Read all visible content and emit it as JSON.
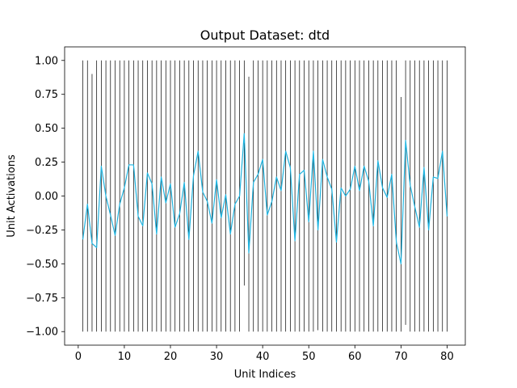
{
  "chart_data": {
    "type": "line",
    "title": "Output Dataset: dtd",
    "xlabel": "Unit Indices",
    "ylabel": "Unit Activations",
    "xlim": [
      -2.95,
      83.95
    ],
    "ylim": [
      -1.1,
      1.1
    ],
    "xticks": [
      0,
      10,
      20,
      30,
      40,
      50,
      60,
      70,
      80
    ],
    "xtick_labels": [
      "0",
      "10",
      "20",
      "30",
      "40",
      "50",
      "60",
      "70",
      "80"
    ],
    "yticks": [
      -1.0,
      -0.75,
      -0.5,
      -0.25,
      0.0,
      0.25,
      0.5,
      0.75,
      1.0
    ],
    "ytick_labels": [
      "−1.00",
      "−0.75",
      "−0.50",
      "−0.25",
      "0.00",
      "0.25",
      "0.50",
      "0.75",
      "1.00"
    ],
    "grid": false,
    "series": [
      {
        "kind": "vlines",
        "color": "#000000",
        "x": [
          1,
          2,
          3,
          4,
          5,
          6,
          7,
          8,
          9,
          10,
          11,
          12,
          13,
          14,
          15,
          16,
          17,
          18,
          19,
          20,
          21,
          22,
          23,
          24,
          25,
          26,
          27,
          28,
          29,
          30,
          31,
          32,
          33,
          34,
          35,
          36,
          37,
          38,
          39,
          40,
          41,
          42,
          43,
          44,
          45,
          46,
          47,
          48,
          49,
          50,
          51,
          52,
          53,
          54,
          55,
          56,
          57,
          58,
          59,
          60,
          61,
          62,
          63,
          64,
          65,
          66,
          67,
          68,
          69,
          70,
          71,
          72,
          73,
          74,
          75,
          76,
          77,
          78,
          79,
          80
        ],
        "ymin": [
          -1,
          -1,
          -1,
          -1,
          -1,
          -1,
          -1,
          -1,
          -1,
          -1,
          -1,
          -1,
          -1,
          -1,
          -1,
          -1,
          -1,
          -1,
          -1,
          -1,
          -1,
          -1,
          -1,
          -1,
          -1,
          -1,
          -1,
          -1,
          -1,
          -1,
          -1,
          -1,
          -1,
          -1,
          -1,
          -0.66,
          -1,
          -1,
          -1,
          -1,
          -1,
          -1,
          -1,
          -1,
          -1,
          -1,
          -1,
          -1,
          -1,
          -1,
          -1,
          -0.99,
          -1,
          -1,
          -1,
          -1,
          -1,
          -1,
          -1,
          -1,
          -1,
          -1,
          -1,
          -1,
          -1,
          -1,
          -1,
          -1,
          -1,
          -1,
          -0.95,
          -1,
          -1,
          -1,
          -1,
          -1,
          -1,
          -1,
          -1,
          -1
        ],
        "ymax": [
          1,
          1,
          0.9,
          1,
          1,
          1,
          1,
          1,
          1,
          1,
          1,
          1,
          1,
          1,
          1,
          1,
          1,
          1,
          1,
          1,
          1,
          1,
          1,
          1,
          1,
          1,
          1,
          1,
          1,
          1,
          1,
          1,
          1,
          1,
          1,
          1,
          0.88,
          1,
          1,
          1,
          1,
          1,
          1,
          1,
          1,
          1,
          1,
          1,
          1,
          1,
          1,
          1,
          1,
          1,
          1,
          1,
          1,
          1,
          1,
          1,
          1,
          1,
          1,
          1,
          1,
          1,
          1,
          1,
          1,
          0.73,
          1,
          1,
          1,
          1,
          1,
          1,
          1,
          1,
          1,
          1
        ]
      },
      {
        "kind": "line",
        "color": "#1fb4e0",
        "x": [
          1,
          2,
          3,
          4,
          5,
          6,
          7,
          8,
          9,
          10,
          11,
          12,
          13,
          14,
          15,
          16,
          17,
          18,
          19,
          20,
          21,
          22,
          23,
          24,
          25,
          26,
          27,
          28,
          29,
          30,
          31,
          32,
          33,
          34,
          35,
          36,
          37,
          38,
          39,
          40,
          41,
          42,
          43,
          44,
          45,
          46,
          47,
          48,
          49,
          50,
          51,
          52,
          53,
          54,
          55,
          56,
          57,
          58,
          59,
          60,
          61,
          62,
          63,
          64,
          65,
          66,
          67,
          68,
          69,
          70,
          71,
          72,
          73,
          74,
          75,
          76,
          77,
          78,
          79,
          80
        ],
        "y": [
          -0.32,
          -0.06,
          -0.35,
          -0.38,
          0.22,
          0.0,
          -0.14,
          -0.29,
          -0.06,
          0.06,
          0.23,
          0.23,
          -0.15,
          -0.22,
          0.17,
          0.09,
          -0.28,
          0.14,
          -0.05,
          0.09,
          -0.23,
          -0.13,
          0.1,
          -0.32,
          0.15,
          0.33,
          0.03,
          -0.04,
          -0.2,
          0.12,
          -0.16,
          0.01,
          -0.28,
          -0.06,
          0.0,
          0.46,
          -0.42,
          0.1,
          0.16,
          0.27,
          -0.14,
          -0.04,
          0.14,
          0.04,
          0.33,
          0.21,
          -0.33,
          0.16,
          0.19,
          -0.19,
          0.33,
          -0.25,
          0.27,
          0.14,
          0.05,
          -0.34,
          0.06,
          0.0,
          0.05,
          0.22,
          0.04,
          0.22,
          0.11,
          -0.22,
          0.26,
          0.06,
          -0.01,
          0.16,
          -0.34,
          -0.5,
          0.41,
          0.08,
          -0.08,
          -0.23,
          0.21,
          -0.25,
          0.14,
          0.13,
          0.33,
          -0.15
        ]
      }
    ]
  }
}
